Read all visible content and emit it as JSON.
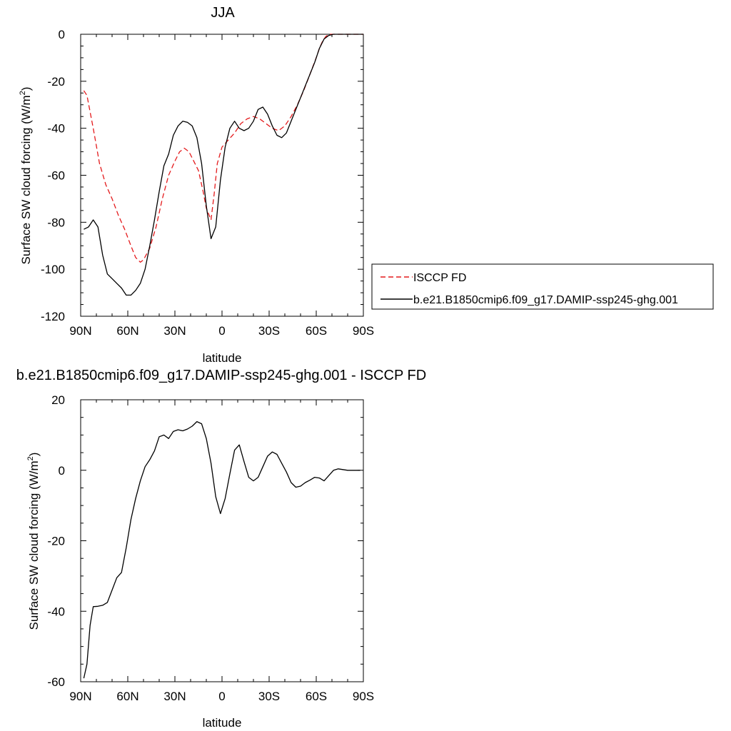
{
  "chart_data": [
    {
      "type": "line",
      "title": "JJA",
      "xlabel": "latitude",
      "ylabel": "Surface SW cloud forcing (W/m",
      "ylabel_sup": "2",
      "ylabel_tail": ")",
      "xlim": [
        -90,
        90
      ],
      "ylim": [
        -120,
        0
      ],
      "x_ticks": [
        -90,
        -60,
        -30,
        0,
        30,
        60,
        90
      ],
      "x_tick_labels": [
        "90N",
        "60N",
        "30N",
        "0",
        "30S",
        "60S",
        "90S"
      ],
      "y_ticks": [
        -120,
        -100,
        -80,
        -60,
        -40,
        -20,
        0
      ],
      "y_tick_labels": [
        "-120",
        "-100",
        "-80",
        "-60",
        "-40",
        "-20",
        "0"
      ],
      "legend_position": "right",
      "series": [
        {
          "name": "ISCCP FD",
          "color": "#e41a1c",
          "dash": true,
          "x": [
            -88,
            -86,
            -82,
            -78,
            -74,
            -70,
            -66,
            -62,
            -58,
            -55,
            -52,
            -50,
            -46,
            -42,
            -38,
            -34,
            -30,
            -27,
            -24,
            -21,
            -18,
            -15,
            -12,
            -10,
            -7,
            -5,
            -3,
            0,
            4,
            8,
            12,
            16,
            20,
            24,
            28,
            32,
            36,
            40,
            44,
            48,
            52,
            56,
            60,
            62,
            64,
            66,
            68,
            70,
            74,
            80,
            90
          ],
          "y": [
            -24,
            -26,
            -40,
            -55,
            -64,
            -70,
            -77,
            -83,
            -90,
            -95,
            -97,
            -96,
            -91,
            -82,
            -70,
            -60,
            -54,
            -50,
            -48.5,
            -50,
            -54,
            -58,
            -67,
            -74,
            -79,
            -68,
            -55,
            -48,
            -45,
            -42,
            -38,
            -36,
            -35,
            -36,
            -38,
            -40,
            -41,
            -39,
            -35,
            -30,
            -24,
            -17,
            -10,
            -6,
            -3,
            -1,
            0,
            0,
            0,
            0,
            0
          ]
        },
        {
          "name": "b.e21.B1850cmip6.f09_g17.DAMIP-ssp245-ghg.001",
          "color": "#000000",
          "dash": false,
          "x": [
            -88,
            -85,
            -82,
            -79,
            -76,
            -73,
            -70,
            -67,
            -64,
            -61,
            -58,
            -55,
            -52,
            -49,
            -46,
            -43,
            -40,
            -37,
            -34,
            -31,
            -28,
            -25,
            -22,
            -19,
            -16,
            -13,
            -10,
            -7,
            -4,
            -1,
            2,
            5,
            8,
            11,
            14,
            17,
            20,
            23,
            26,
            29,
            32,
            35,
            38,
            41,
            44,
            47,
            50,
            53,
            56,
            59,
            62,
            65,
            68,
            71,
            74,
            80,
            90
          ],
          "y": [
            -83,
            -82,
            -79,
            -82,
            -94,
            -102,
            -104,
            -106,
            -108,
            -111,
            -111,
            -109,
            -106,
            -100,
            -90,
            -79,
            -67,
            -56,
            -51,
            -43,
            -39,
            -37,
            -37.5,
            -39,
            -44,
            -55,
            -73,
            -87,
            -82,
            -62,
            -48,
            -40,
            -37,
            -40,
            -41,
            -40,
            -37,
            -32,
            -31,
            -34,
            -39,
            -43,
            -44,
            -42,
            -37,
            -32,
            -27,
            -22,
            -17,
            -12,
            -6,
            -2,
            -0.5,
            0,
            0,
            0,
            0
          ]
        }
      ]
    },
    {
      "type": "line",
      "title": "b.e21.B1850cmip6.f09_g17.DAMIP-ssp245-ghg.001 - ISCCP FD",
      "xlabel": "latitude",
      "ylabel": "Surface SW cloud forcing (W/m",
      "ylabel_sup": "2",
      "ylabel_tail": ")",
      "xlim": [
        -90,
        90
      ],
      "ylim": [
        -60,
        20
      ],
      "x_ticks": [
        -90,
        -60,
        -30,
        0,
        30,
        60,
        90
      ],
      "x_tick_labels": [
        "90N",
        "60N",
        "30N",
        "0",
        "30S",
        "60S",
        "90S"
      ],
      "y_ticks": [
        -60,
        -40,
        -20,
        0,
        20
      ],
      "y_tick_labels": [
        "-60",
        "-40",
        "-20",
        "0",
        "20"
      ],
      "series": [
        {
          "color": "#000000",
          "dash": false,
          "x": [
            -88,
            -86,
            -84,
            -82,
            -79,
            -76,
            -73,
            -70,
            -67,
            -64,
            -61,
            -58,
            -55,
            -52,
            -49,
            -46,
            -43,
            -40,
            -37,
            -34,
            -31,
            -28,
            -25,
            -22,
            -19,
            -16,
            -13,
            -10,
            -7,
            -4,
            -1,
            2,
            5,
            8,
            11,
            14,
            17,
            20,
            23,
            26,
            29,
            32,
            35,
            38,
            41,
            44,
            47,
            50,
            53,
            56,
            59,
            62,
            65,
            68,
            71,
            74,
            80,
            88
          ],
          "y": [
            -59,
            -55,
            -44,
            -38.7,
            -38.6,
            -38.3,
            -37.5,
            -34,
            -30.5,
            -29,
            -22,
            -14,
            -8,
            -3,
            1,
            3,
            5.5,
            9.5,
            10,
            9,
            11,
            11.5,
            11.2,
            11.7,
            12.5,
            13.8,
            13.2,
            9,
            2,
            -7.5,
            -12.3,
            -8,
            -1,
            5.7,
            7.2,
            2.5,
            -2,
            -3,
            -2,
            1,
            4,
            5.2,
            4.5,
            2,
            -0.5,
            -3.5,
            -4.8,
            -4.5,
            -3.5,
            -2.8,
            -2,
            -2.2,
            -3,
            -1.5,
            0,
            0.4,
            0,
            0
          ]
        }
      ]
    }
  ]
}
